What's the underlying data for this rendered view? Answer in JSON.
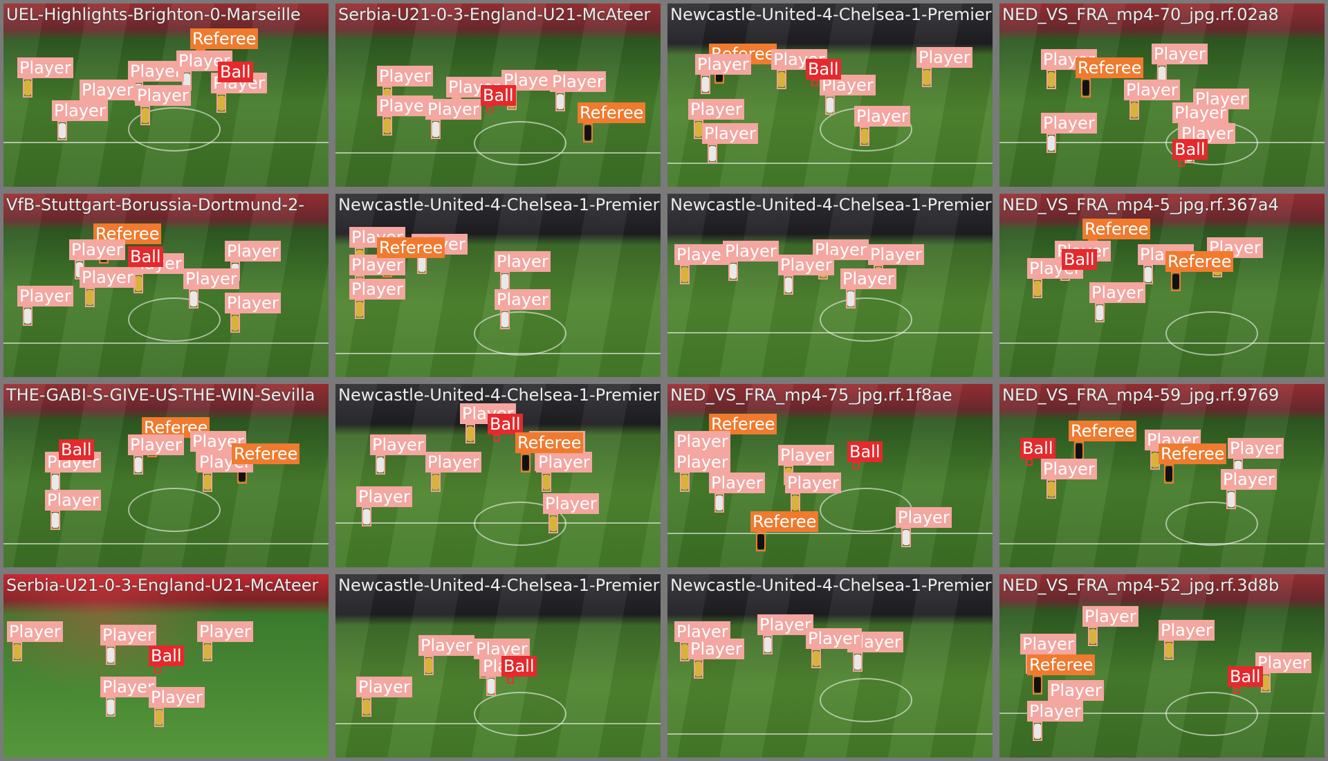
{
  "labels": {
    "player": "Player",
    "referee": "Referee",
    "ball": "Ball"
  },
  "colors": {
    "player": "#f4a6a0",
    "referee": "#f07a2e",
    "ball": "#e5292c"
  },
  "tiles": [
    {
      "caption": "UEL-Highlights-Brighton-0-Marseille",
      "detections": [
        "player",
        "player",
        "player",
        "player",
        "player",
        "player",
        "player",
        "referee",
        "ball"
      ]
    },
    {
      "caption": "Serbia-U21-0-3-England-U21-McAteer",
      "detections": [
        "player",
        "player",
        "player",
        "player",
        "player",
        "player",
        "ball",
        "referee"
      ]
    },
    {
      "caption": "Newcastle-United-4-Chelsea-1-Premier",
      "detections": [
        "referee",
        "player",
        "player",
        "player",
        "player",
        "player",
        "player",
        "ball",
        "player"
      ]
    },
    {
      "caption": "NED_VS_FRA_mp4-70_jpg.rf.02a8",
      "detections": [
        "player",
        "player",
        "player",
        "player",
        "player",
        "player",
        "player",
        "referee",
        "ball"
      ]
    },
    {
      "caption": "VfB-Stuttgart-Borussia-Dortmund-2-",
      "detections": [
        "referee",
        "player",
        "player",
        "player",
        "player",
        "player",
        "player",
        "player",
        "ball"
      ]
    },
    {
      "caption": "Newcastle-United-4-Chelsea-1-Premier",
      "detections": [
        "player",
        "player",
        "player",
        "player",
        "player",
        "player",
        "referee"
      ]
    },
    {
      "caption": "Newcastle-United-4-Chelsea-1-Premier",
      "detections": [
        "player",
        "player",
        "player",
        "player",
        "player",
        "player"
      ]
    },
    {
      "caption": "NED_VS_FRA_mp4-5_jpg.rf.367a4",
      "detections": [
        "referee",
        "player",
        "player",
        "player",
        "player",
        "player",
        "referee",
        "ball"
      ]
    },
    {
      "caption": "THE-GABI-S-GIVE-US-THE-WIN-Sevilla",
      "detections": [
        "referee",
        "player",
        "player",
        "player",
        "player",
        "player",
        "ball",
        "referee"
      ]
    },
    {
      "caption": "Newcastle-United-4-Chelsea-1-Premier",
      "detections": [
        "player",
        "player",
        "player",
        "player",
        "player",
        "player",
        "player",
        "ball",
        "referee"
      ]
    },
    {
      "caption": "NED_VS_FRA_mp4-75_jpg.rf.1f8ae",
      "detections": [
        "referee",
        "player",
        "player",
        "player",
        "player",
        "player",
        "player",
        "ball",
        "referee"
      ]
    },
    {
      "caption": "NED_VS_FRA_mp4-59_jpg.rf.9769",
      "detections": [
        "referee",
        "ball",
        "player",
        "player",
        "player",
        "player",
        "referee"
      ]
    },
    {
      "caption": "Serbia-U21-0-3-England-U21-McAteer",
      "detections": [
        "player",
        "player",
        "player",
        "player",
        "player",
        "ball"
      ]
    },
    {
      "caption": "Newcastle-United-4-Chelsea-1-Premier",
      "detections": [
        "player",
        "player",
        "player",
        "player",
        "ball"
      ]
    },
    {
      "caption": "Newcastle-United-4-Chelsea-1-Premier",
      "detections": [
        "player",
        "player",
        "player",
        "player",
        "player"
      ]
    },
    {
      "caption": "NED_VS_FRA_mp4-52_jpg.rf.3d8b",
      "detections": [
        "player",
        "player",
        "player",
        "player",
        "player",
        "referee",
        "player",
        "ball"
      ]
    }
  ]
}
